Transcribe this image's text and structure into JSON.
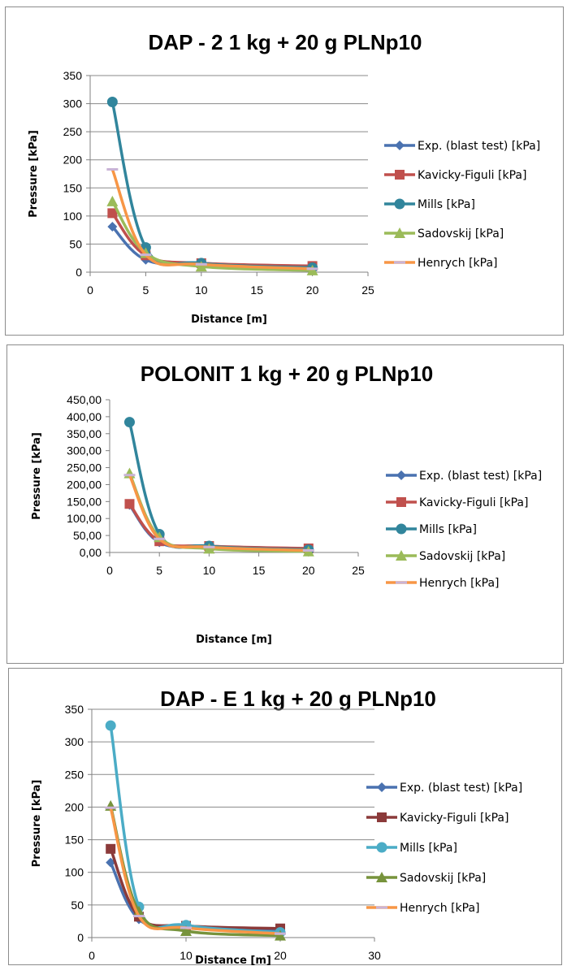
{
  "chart_data": [
    {
      "type": "line",
      "title": "DAP - 2   1 kg + 20 g PLNp10",
      "xlabel": "Distance [m]",
      "ylabel": "Pressure [kPa]",
      "xlim": [
        0,
        25
      ],
      "ylim": [
        0,
        350
      ],
      "xticks": [
        "0",
        "5",
        "10",
        "15",
        "20",
        "25"
      ],
      "yticks": [
        "0",
        "50",
        "100",
        "150",
        "200",
        "250",
        "300",
        "350"
      ],
      "grid": "horizontal",
      "legend": "right",
      "x": [
        2,
        5,
        10,
        20
      ],
      "series": [
        {
          "name": "Exp. (blast test) [kPa]",
          "color": "#4a72b0",
          "marker": "diamond",
          "values": [
            81,
            22,
            14,
            9
          ]
        },
        {
          "name": "Kavicky-Figuli  [kPa]",
          "color": "#c0504d",
          "marker": "square",
          "values": [
            105,
            30,
            16,
            11
          ]
        },
        {
          "name": "Mills  [kPa]",
          "color": "#31859c",
          "marker": "circle",
          "values": [
            303,
            44,
            16,
            8
          ]
        },
        {
          "name": "Sadovskij  [kPa]",
          "color": "#9bbb59",
          "marker": "triangle",
          "values": [
            126,
            34,
            10,
            3
          ]
        },
        {
          "name": "Henrych  [kPa]",
          "color": "#f79646",
          "marker": "dash",
          "values": [
            183,
            31,
            14,
            6
          ]
        }
      ]
    },
    {
      "type": "line",
      "title": "POLONIT 1 kg + 20 g PLNp10",
      "xlabel": "Distance [m]",
      "ylabel": "Pressure [kPa]",
      "xlim": [
        0,
        25
      ],
      "ylim": [
        0,
        450
      ],
      "xticks": [
        "0",
        "5",
        "10",
        "15",
        "20",
        "25"
      ],
      "yticks": [
        "0,00",
        "50,00",
        "100,00",
        "150,00",
        "200,00",
        "250,00",
        "300,00",
        "350,00",
        "400,00",
        "450,00"
      ],
      "grid": "none",
      "legend": "right",
      "x": [
        2,
        5,
        10,
        20
      ],
      "series": [
        {
          "name": "Exp. (blast test) [kPa]",
          "color": "#4a72b0",
          "marker": "diamond",
          "values": [
            140,
            30,
            18,
            11
          ]
        },
        {
          "name": "Kavicky-Figuli [kPa]",
          "color": "#c0504d",
          "marker": "square",
          "values": [
            143,
            33,
            19,
            12
          ]
        },
        {
          "name": "Mills [kPa]",
          "color": "#31859c",
          "marker": "circle",
          "values": [
            384,
            54,
            19,
            8
          ]
        },
        {
          "name": "Sadovskij [kPa]",
          "color": "#9bbb59",
          "marker": "triangle",
          "values": [
            233,
            45,
            11,
            3
          ]
        },
        {
          "name": "Henrych [kPa]",
          "color": "#f79646",
          "marker": "dash",
          "values": [
            228,
            40,
            16,
            6
          ]
        }
      ]
    },
    {
      "type": "line",
      "title": "DAP - E   1 kg + 20 g PLNp10",
      "xlabel": "Distance [m]",
      "ylabel": "Pressure [kPa]",
      "xlim": [
        0,
        30
      ],
      "ylim": [
        0,
        350
      ],
      "xticks": [
        "0",
        "10",
        "20",
        "30"
      ],
      "yticks": [
        "0",
        "50",
        "100",
        "150",
        "200",
        "250",
        "300",
        "350"
      ],
      "grid": "horizontal",
      "legend": "right",
      "x": [
        2,
        5,
        10,
        20
      ],
      "series": [
        {
          "name": "Exp. (blast test) [kPa]",
          "color": "#4a72b0",
          "marker": "diamond",
          "values": [
            115,
            28,
            16,
            10
          ]
        },
        {
          "name": "Kavicky-Figuli [kPa]",
          "color": "#8b3a3a",
          "marker": "square",
          "values": [
            136,
            32,
            18,
            14
          ]
        },
        {
          "name": "Mills  [kPa]",
          "color": "#4bacc6",
          "marker": "circle",
          "values": [
            325,
            47,
            19,
            8
          ]
        },
        {
          "name": "Sadovskij  [kPa]",
          "color": "#77933c",
          "marker": "triangle",
          "values": [
            202,
            40,
            10,
            3
          ]
        },
        {
          "name": "Henrych  [kPa]",
          "color": "#f79646",
          "marker": "dash",
          "values": [
            199,
            33,
            15,
            6
          ]
        }
      ]
    }
  ]
}
